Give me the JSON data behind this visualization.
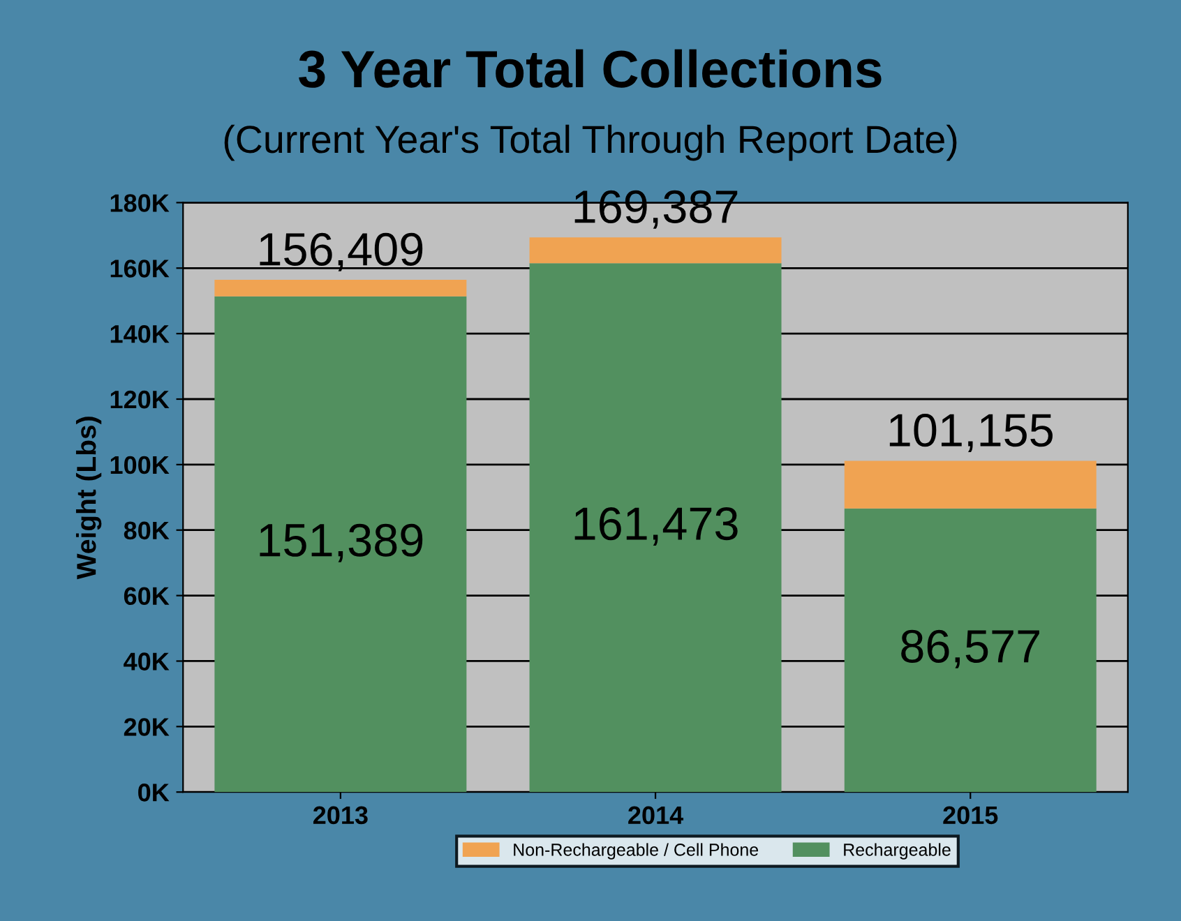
{
  "chart_data": {
    "type": "bar",
    "title": "3 Year Total Collections",
    "subtitle": "(Current Year's Total Through Report Date)",
    "ylabel": "Weight (Lbs)",
    "categories": [
      "2013",
      "2014",
      "2015"
    ],
    "stacked": true,
    "series": [
      {
        "name": "Rechargeable",
        "color": "#52905f",
        "values": [
          151389,
          161473,
          86577
        ],
        "value_labels": [
          "151,389",
          "161,473",
          "86,577"
        ]
      },
      {
        "name": "Non-Rechargeable / Cell Phone",
        "color": "#f0a352",
        "values": [
          5020,
          7914,
          14578
        ]
      }
    ],
    "totals": [
      "156,409",
      "169,387",
      "101,155"
    ],
    "ylim": [
      0,
      180000
    ],
    "yticks": [
      {
        "value": 0,
        "label": "0K"
      },
      {
        "value": 20000,
        "label": "20K"
      },
      {
        "value": 40000,
        "label": "40K"
      },
      {
        "value": 60000,
        "label": "60K"
      },
      {
        "value": 80000,
        "label": "80K"
      },
      {
        "value": 100000,
        "label": "100K"
      },
      {
        "value": 120000,
        "label": "120K"
      },
      {
        "value": 140000,
        "label": "140K"
      },
      {
        "value": 160000,
        "label": "160K"
      },
      {
        "value": 180000,
        "label": "180K"
      }
    ],
    "grid": "y",
    "legend": "bottom"
  }
}
